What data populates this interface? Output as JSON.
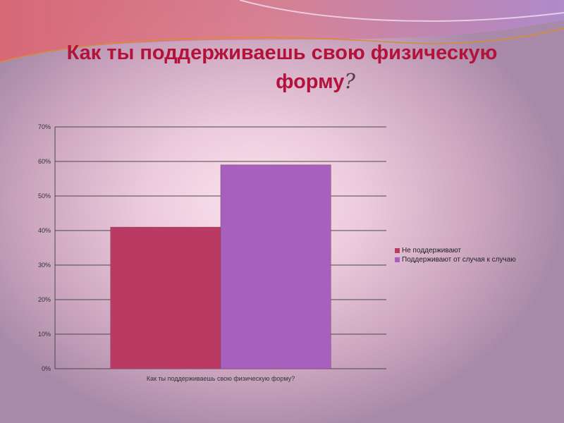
{
  "title": {
    "line1": "Как ты поддерживаешь свою физическую",
    "line2": "форму",
    "mark": "?"
  },
  "chart_data": {
    "type": "bar",
    "categories": [
      "Как ты поддерживаешь свою физическую форму?"
    ],
    "series": [
      {
        "name": "Не поддерживают",
        "values": [
          41
        ],
        "color": "#bb3a63"
      },
      {
        "name": "Поддерживают от случая к случаю",
        "values": [
          59
        ],
        "color": "#a760bd"
      }
    ],
    "ylim": [
      0,
      70
    ],
    "yticks": [
      "0%",
      "10%",
      "20%",
      "30%",
      "40%",
      "50%",
      "60%",
      "70%"
    ],
    "grid": true,
    "legend": "right",
    "xlabel": "",
    "ylabel": ""
  }
}
